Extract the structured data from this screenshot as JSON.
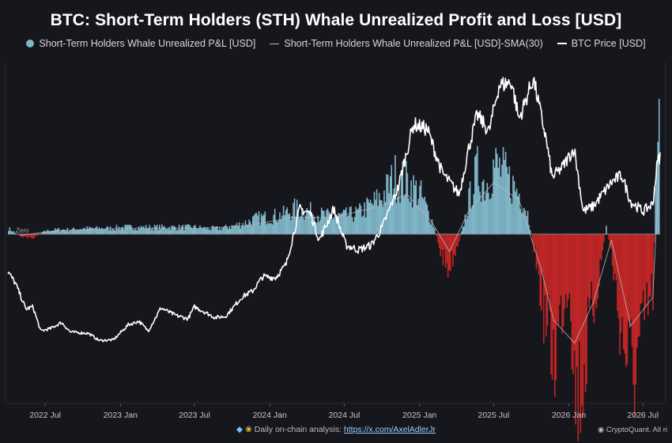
{
  "chart_data": {
    "type": "bar",
    "title": "BTC: Short-Term Holders (STH) Whale Unrealized Profit and Loss [USD]",
    "legend_position": "top-center",
    "grid": false,
    "x_tick_labels": [
      "2022 Jul",
      "2023 Jan",
      "2023 Jul",
      "2024 Jan",
      "2024 Jul",
      "2025 Jan",
      "2025 Jul",
      "2026 Jan",
      "2026 Jul"
    ],
    "x_tick_dates": [
      "2022-07-01",
      "2023-01-01",
      "2023-07-01",
      "2024-01-01",
      "2024-07-01",
      "2025-01-01",
      "2025-07-01",
      "2026-01-01",
      "2026-07-01"
    ],
    "zero_label": "Zero",
    "series": [
      {
        "name": "Short-Term Holders Whale Unrealized P&L [USD]",
        "kind": "bar",
        "color_positive": "#7fb6c8",
        "color_negative": "#c02626",
        "units": "relative",
        "points": [
          [
            "2022-04-01",
            0.05
          ],
          [
            "2022-05-01",
            -0.02
          ],
          [
            "2022-06-01",
            -0.03
          ],
          [
            "2022-07-01",
            0.03
          ],
          [
            "2022-08-01",
            0.04
          ],
          [
            "2022-09-01",
            0.04
          ],
          [
            "2022-10-01",
            0.05
          ],
          [
            "2022-11-01",
            0.05
          ],
          [
            "2022-12-01",
            0.05
          ],
          [
            "2023-01-01",
            0.06
          ],
          [
            "2023-02-01",
            0.06
          ],
          [
            "2023-03-01",
            0.06
          ],
          [
            "2023-04-01",
            0.06
          ],
          [
            "2023-05-01",
            0.06
          ],
          [
            "2023-06-01",
            0.06
          ],
          [
            "2023-07-01",
            0.06
          ],
          [
            "2023-08-01",
            0.05
          ],
          [
            "2023-09-01",
            0.05
          ],
          [
            "2023-10-01",
            0.07
          ],
          [
            "2023-11-01",
            0.1
          ],
          [
            "2023-12-01",
            0.14
          ],
          [
            "2024-01-01",
            0.15
          ],
          [
            "2024-02-01",
            0.17
          ],
          [
            "2024-03-01",
            0.22
          ],
          [
            "2024-04-01",
            0.2
          ],
          [
            "2024-05-01",
            0.17
          ],
          [
            "2024-06-01",
            0.15
          ],
          [
            "2024-07-01",
            0.16
          ],
          [
            "2024-08-01",
            0.18
          ],
          [
            "2024-09-01",
            0.25
          ],
          [
            "2024-10-01",
            0.33
          ],
          [
            "2024-11-01",
            0.5
          ],
          [
            "2024-12-01",
            0.45
          ],
          [
            "2025-01-01",
            0.35
          ],
          [
            "2025-02-01",
            0.1
          ],
          [
            "2025-02-20",
            -0.15
          ],
          [
            "2025-03-10",
            -0.3
          ],
          [
            "2025-03-25",
            -0.18
          ],
          [
            "2025-04-15",
            0.05
          ],
          [
            "2025-05-01",
            0.3
          ],
          [
            "2025-05-20",
            0.55
          ],
          [
            "2025-06-10",
            0.42
          ],
          [
            "2025-07-01",
            0.6
          ],
          [
            "2025-07-20",
            0.55
          ],
          [
            "2025-08-10",
            0.45
          ],
          [
            "2025-09-01",
            0.35
          ],
          [
            "2025-09-20",
            0.2
          ],
          [
            "2025-10-10",
            -0.2
          ],
          [
            "2025-10-25",
            -0.55
          ],
          [
            "2025-11-10",
            -0.9
          ],
          [
            "2025-11-25",
            -1.1
          ],
          [
            "2025-12-10",
            -0.7
          ],
          [
            "2026-01-01",
            -0.4
          ],
          [
            "2026-01-15",
            -1.4
          ],
          [
            "2026-02-01",
            -1.3
          ],
          [
            "2026-02-20",
            -0.8
          ],
          [
            "2026-03-10",
            -0.45
          ],
          [
            "2026-04-01",
            0.06
          ],
          [
            "2026-04-15",
            -0.2
          ],
          [
            "2026-05-01",
            -0.7
          ],
          [
            "2026-05-20",
            -1.05
          ],
          [
            "2026-06-10",
            -1.2
          ],
          [
            "2026-06-25",
            -0.9
          ],
          [
            "2026-07-10",
            -0.65
          ],
          [
            "2026-07-25",
            -0.5
          ],
          [
            "2026-08-01",
            0.9
          ],
          [
            "2026-08-10",
            1.35
          ]
        ]
      },
      {
        "name": "Short-Term Holders Whale Unrealized P&L [USD]-SMA(30)",
        "kind": "line",
        "color": "#bcbcbc",
        "units": "relative",
        "points": [
          [
            "2022-05-01",
            -0.01
          ],
          [
            "2022-08-01",
            0.03
          ],
          [
            "2023-01-01",
            0.05
          ],
          [
            "2023-07-01",
            0.05
          ],
          [
            "2023-11-01",
            0.07
          ],
          [
            "2024-03-01",
            0.15
          ],
          [
            "2024-06-01",
            0.14
          ],
          [
            "2024-10-01",
            0.25
          ],
          [
            "2024-12-01",
            0.35
          ],
          [
            "2025-02-01",
            0.1
          ],
          [
            "2025-03-15",
            -0.15
          ],
          [
            "2025-05-01",
            0.2
          ],
          [
            "2025-07-01",
            0.45
          ],
          [
            "2025-09-01",
            0.3
          ],
          [
            "2025-10-25",
            -0.3
          ],
          [
            "2025-11-25",
            -0.75
          ],
          [
            "2026-01-15",
            -0.95
          ],
          [
            "2026-03-01",
            -0.6
          ],
          [
            "2026-04-15",
            -0.05
          ],
          [
            "2026-06-01",
            -0.8
          ],
          [
            "2026-07-25",
            -0.55
          ],
          [
            "2026-08-10",
            0.6
          ]
        ]
      },
      {
        "name": "BTC Price [USD]",
        "kind": "line",
        "color": "#ffffff",
        "points": [
          [
            "2022-04-01",
            45000
          ],
          [
            "2022-04-20",
            40000
          ],
          [
            "2022-05-15",
            29500
          ],
          [
            "2022-06-01",
            30500
          ],
          [
            "2022-06-20",
            20500
          ],
          [
            "2022-07-15",
            21500
          ],
          [
            "2022-08-10",
            24000
          ],
          [
            "2022-09-01",
            20000
          ],
          [
            "2022-10-15",
            19500
          ],
          [
            "2022-11-10",
            16500
          ],
          [
            "2022-12-15",
            16800
          ],
          [
            "2023-01-20",
            23000
          ],
          [
            "2023-02-15",
            24500
          ],
          [
            "2023-03-10",
            20500
          ],
          [
            "2023-04-10",
            30000
          ],
          [
            "2023-05-15",
            27000
          ],
          [
            "2023-06-15",
            25500
          ],
          [
            "2023-07-01",
            30500
          ],
          [
            "2023-08-20",
            26000
          ],
          [
            "2023-09-15",
            26500
          ],
          [
            "2023-10-25",
            34500
          ],
          [
            "2023-11-20",
            37000
          ],
          [
            "2023-12-15",
            43000
          ],
          [
            "2024-01-15",
            42500
          ],
          [
            "2024-02-10",
            48000
          ],
          [
            "2024-03-14",
            71000
          ],
          [
            "2024-04-10",
            69000
          ],
          [
            "2024-05-01",
            58000
          ],
          [
            "2024-06-05",
            71000
          ],
          [
            "2024-07-05",
            56000
          ],
          [
            "2024-08-05",
            54000
          ],
          [
            "2024-09-05",
            56000
          ],
          [
            "2024-10-01",
            63000
          ],
          [
            "2024-11-10",
            80000
          ],
          [
            "2024-12-17",
            106000
          ],
          [
            "2025-01-20",
            104000
          ],
          [
            "2025-02-25",
            86000
          ],
          [
            "2025-04-08",
            77000
          ],
          [
            "2025-05-01",
            96000
          ],
          [
            "2025-05-22",
            110000
          ],
          [
            "2025-06-20",
            103000
          ],
          [
            "2025-07-14",
            122000
          ],
          [
            "2025-08-14",
            123500
          ],
          [
            "2025-09-01",
            108000
          ],
          [
            "2025-10-06",
            125000
          ],
          [
            "2025-11-05",
            101000
          ],
          [
            "2025-11-21",
            84000
          ],
          [
            "2025-12-15",
            88000
          ],
          [
            "2026-01-14",
            96000
          ],
          [
            "2026-02-05",
            70000
          ],
          [
            "2026-03-01",
            72000
          ],
          [
            "2026-04-15",
            82000
          ],
          [
            "2026-05-10",
            85000
          ],
          [
            "2026-06-01",
            74000
          ],
          [
            "2026-07-01",
            70000
          ],
          [
            "2026-07-25",
            73000
          ],
          [
            "2026-08-05",
            90000
          ],
          [
            "2026-08-12",
            93000
          ]
        ]
      }
    ]
  },
  "footer": {
    "text": "Daily on-chain analysis:",
    "link": "https://x.com/AxelAdlerJr",
    "brand": "CryptoQuant. All ri"
  }
}
